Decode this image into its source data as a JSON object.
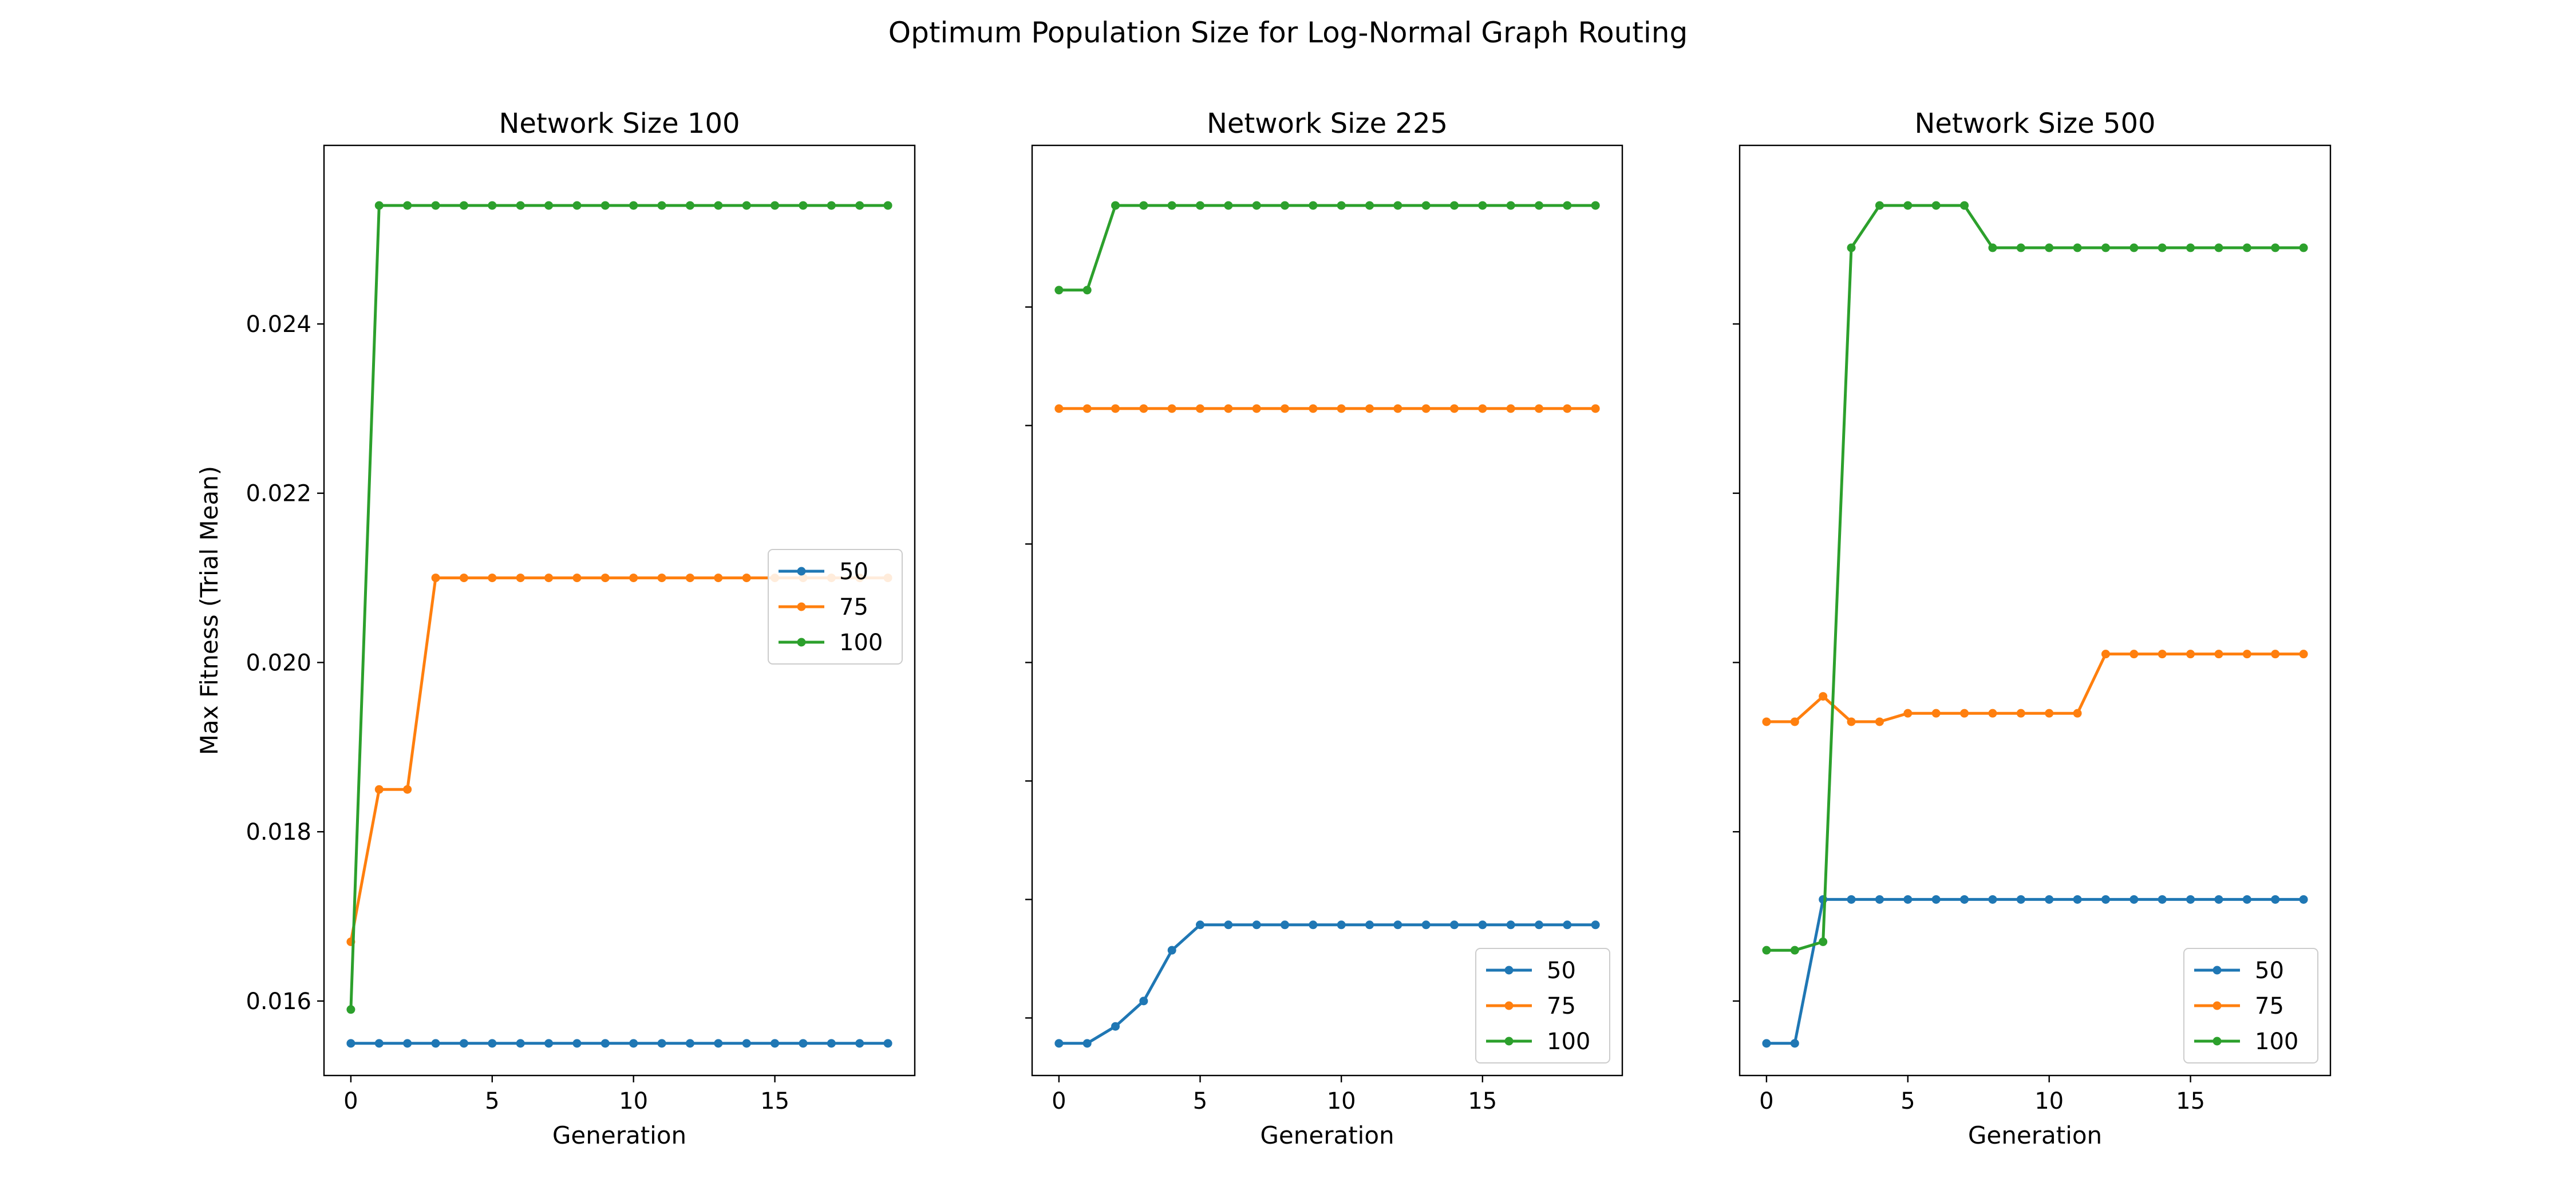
{
  "figure": {
    "suptitle": "Optimum Population Size for Log-Normal Graph Routing"
  },
  "colors": {
    "50": "#1f77b4",
    "75": "#ff7f0e",
    "100": "#2ca02c"
  },
  "chart_data": [
    {
      "type": "line",
      "title": "Network Size 100",
      "xlabel": "Generation",
      "ylabel": "Max Fitness (Trial Mean)",
      "xlim": [
        -0.95,
        19.95
      ],
      "ylim": [
        0.01512,
        0.02611
      ],
      "xticks": [
        0,
        5,
        10,
        15
      ],
      "yticks": [
        0.016,
        0.018,
        0.02,
        0.022,
        0.024
      ],
      "ytick_labels": [
        "0.016",
        "0.018",
        "0.020",
        "0.022",
        "0.024"
      ],
      "legend_position": "center-right",
      "x": [
        0,
        1,
        2,
        3,
        4,
        5,
        6,
        7,
        8,
        9,
        10,
        11,
        12,
        13,
        14,
        15,
        16,
        17,
        18,
        19
      ],
      "series": [
        {
          "name": "50",
          "values": [
            0.0155,
            0.0155,
            0.0155,
            0.0155,
            0.0155,
            0.0155,
            0.0155,
            0.0155,
            0.0155,
            0.0155,
            0.0155,
            0.0155,
            0.0155,
            0.0155,
            0.0155,
            0.0155,
            0.0155,
            0.0155,
            0.0155,
            0.0155
          ]
        },
        {
          "name": "75",
          "values": [
            0.0167,
            0.0185,
            0.0185,
            0.021,
            0.021,
            0.021,
            0.021,
            0.021,
            0.021,
            0.021,
            0.021,
            0.021,
            0.021,
            0.021,
            0.021,
            0.021,
            0.021,
            0.021,
            0.021,
            0.021
          ]
        },
        {
          "name": "100",
          "values": [
            0.0159,
            0.0254,
            0.0254,
            0.0254,
            0.0254,
            0.0254,
            0.0254,
            0.0254,
            0.0254,
            0.0254,
            0.0254,
            0.0254,
            0.0254,
            0.0254,
            0.0254,
            0.0254,
            0.0254,
            0.0254,
            0.0254,
            0.0254
          ]
        }
      ]
    },
    {
      "type": "line",
      "title": "Network Size 225",
      "xlabel": "Generation",
      "ylabel": "",
      "xlim": [
        -0.95,
        19.95
      ],
      "ylim": [
        0.01512,
        0.02611
      ],
      "xticks": [
        0,
        5,
        10,
        15
      ],
      "yticks": [
        0.0158,
        0.0172,
        0.0186,
        0.02,
        0.0214,
        0.0228,
        0.0242
      ],
      "ytick_labels": [],
      "legend_position": "lower-right",
      "x": [
        0,
        1,
        2,
        3,
        4,
        5,
        6,
        7,
        8,
        9,
        10,
        11,
        12,
        13,
        14,
        15,
        16,
        17,
        18,
        19
      ],
      "series": [
        {
          "name": "50",
          "values": [
            0.0155,
            0.0155,
            0.0157,
            0.016,
            0.0166,
            0.0169,
            0.0169,
            0.0169,
            0.0169,
            0.0169,
            0.0169,
            0.0169,
            0.0169,
            0.0169,
            0.0169,
            0.0169,
            0.0169,
            0.0169,
            0.0169,
            0.0169
          ]
        },
        {
          "name": "75",
          "values": [
            0.023,
            0.023,
            0.023,
            0.023,
            0.023,
            0.023,
            0.023,
            0.023,
            0.023,
            0.023,
            0.023,
            0.023,
            0.023,
            0.023,
            0.023,
            0.023,
            0.023,
            0.023,
            0.023,
            0.023
          ]
        },
        {
          "name": "100",
          "values": [
            0.0244,
            0.0244,
            0.0254,
            0.0254,
            0.0254,
            0.0254,
            0.0254,
            0.0254,
            0.0254,
            0.0254,
            0.0254,
            0.0254,
            0.0254,
            0.0254,
            0.0254,
            0.0254,
            0.0254,
            0.0254,
            0.0254,
            0.0254
          ]
        }
      ]
    },
    {
      "type": "line",
      "title": "Network Size 500",
      "xlabel": "Generation",
      "ylabel": "",
      "xlim": [
        -0.95,
        19.95
      ],
      "ylim": [
        0.01512,
        0.02611
      ],
      "xticks": [
        0,
        5,
        10,
        15
      ],
      "yticks": [
        0.016,
        0.018,
        0.02,
        0.022,
        0.024
      ],
      "ytick_labels": [],
      "legend_position": "lower-right",
      "x": [
        0,
        1,
        2,
        3,
        4,
        5,
        6,
        7,
        8,
        9,
        10,
        11,
        12,
        13,
        14,
        15,
        16,
        17,
        18,
        19
      ],
      "series": [
        {
          "name": "50",
          "values": [
            0.0155,
            0.0155,
            0.0172,
            0.0172,
            0.0172,
            0.0172,
            0.0172,
            0.0172,
            0.0172,
            0.0172,
            0.0172,
            0.0172,
            0.0172,
            0.0172,
            0.0172,
            0.0172,
            0.0172,
            0.0172,
            0.0172,
            0.0172
          ]
        },
        {
          "name": "75",
          "values": [
            0.0193,
            0.0193,
            0.0196,
            0.0193,
            0.0193,
            0.0194,
            0.0194,
            0.0194,
            0.0194,
            0.0194,
            0.0194,
            0.0194,
            0.0201,
            0.0201,
            0.0201,
            0.0201,
            0.0201,
            0.0201,
            0.0201,
            0.0201
          ]
        },
        {
          "name": "100",
          "values": [
            0.0166,
            0.0166,
            0.0167,
            0.0249,
            0.0254,
            0.0254,
            0.0254,
            0.0254,
            0.0249,
            0.0249,
            0.0249,
            0.0249,
            0.0249,
            0.0249,
            0.0249,
            0.0249,
            0.0249,
            0.0249,
            0.0249,
            0.0249
          ]
        }
      ]
    }
  ]
}
